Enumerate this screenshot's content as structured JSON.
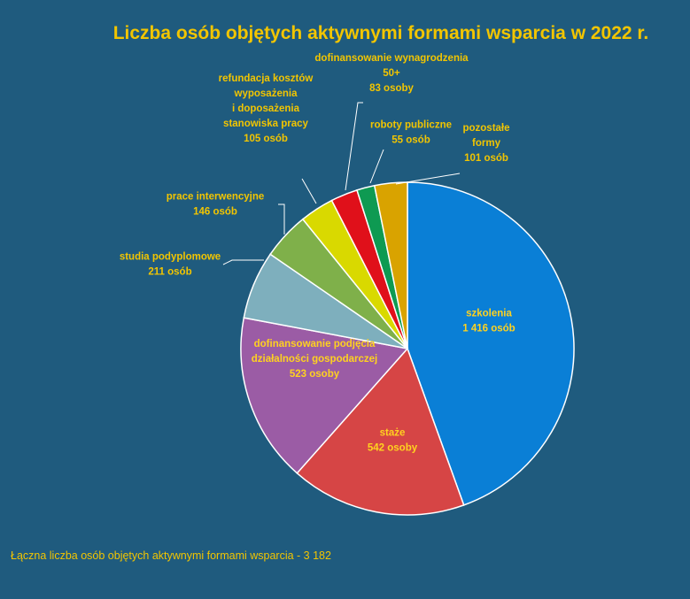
{
  "chart_data": {
    "type": "pie",
    "title": "Liczba osób objętych aktywnymi formami wsparcia w 2022 r.",
    "footer": "Łączna liczba osób objętych aktywnymi formami wsparcia - 3 182",
    "slices": [
      {
        "name": "szkolenia",
        "value": 1416,
        "lines": [
          "szkolenia",
          "1 416 osób"
        ],
        "color": "#0a7fd6"
      },
      {
        "name": "staże",
        "value": 542,
        "lines": [
          "staże",
          "542 osoby"
        ],
        "color": "#d64545"
      },
      {
        "name": "dofinansowanie podjęcia działalności gospodarczej",
        "value": 523,
        "lines": [
          "dofinansowanie  podjęcia",
          "działalności  gospodarczej",
          "523 osoby"
        ],
        "color": "#9b5ca5"
      },
      {
        "name": "studia podyplomowe",
        "value": 211,
        "lines": [
          "studia podyplomowe",
          "211 osób"
        ],
        "color": "#7eafbd"
      },
      {
        "name": "prace interwencyjne",
        "value": 146,
        "lines": [
          "prace interwencyjne",
          "146 osób"
        ],
        "color": "#7fb04a"
      },
      {
        "name": "refundacja kosztów wyposażenia i doposażenia stanowiska pracy",
        "value": 105,
        "lines": [
          "refundacja  kosztów",
          "wyposażenia",
          "i doposażenia",
          "stanowiska  pracy",
          "105 osób"
        ],
        "color": "#d9d900"
      },
      {
        "name": "dofinansowanie wynagrodzenia 50+",
        "value": 83,
        "lines": [
          "dofinansowanie  wynagrodzenia",
          "50+",
          "83 osoby"
        ],
        "color": "#e0101a"
      },
      {
        "name": "roboty publiczne",
        "value": 55,
        "lines": [
          "roboty publiczne",
          "55 osób"
        ],
        "color": "#0e9a52"
      },
      {
        "name": "pozostałe formy",
        "value": 101,
        "lines": [
          "pozostałe",
          "formy",
          "101 osób"
        ],
        "color": "#d9a300"
      }
    ]
  }
}
